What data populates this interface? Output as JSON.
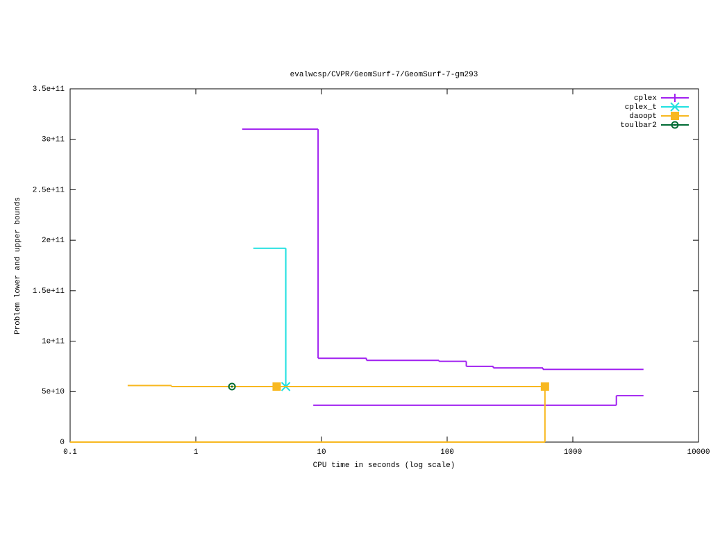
{
  "chart_data": {
    "type": "step",
    "title": "evalwcsp/CVPR/GeomSurf-7/GeomSurf-7-gm293",
    "x_label": "CPU time in seconds (log scale)",
    "y_label": "Problem lower and upper bounds",
    "xscale": "log",
    "legend": "top-right",
    "xlim": [
      0.1,
      10000
    ],
    "xticks": [
      0.1,
      1,
      10,
      100,
      1000,
      10000
    ],
    "ylim": [
      0,
      350000000000
    ],
    "yticks": [
      0,
      {
        "value": 50000000000,
        "label": "5e+10"
      },
      {
        "value": 100000000000,
        "label": "1e+11"
      },
      {
        "value": 150000000000,
        "label": "1.5e+11"
      },
      {
        "value": 200000000000,
        "label": "2e+11"
      },
      {
        "value": 250000000000,
        "label": "2.5e+11"
      },
      {
        "value": 300000000000,
        "label": "3e+11"
      },
      {
        "value": 350000000000,
        "label": "3.5e+11"
      }
    ],
    "series": [
      {
        "name": "cplex",
        "color": "#a020f0",
        "marker": "plus",
        "x": [
          2.34,
          9.4,
          22.8,
          86,
          142,
          233,
          578,
          3650
        ],
        "values": [
          310000000000,
          83000000000,
          81000000000,
          80000000000,
          75000000000,
          73500000000,
          72000000000,
          72000000000
        ],
        "lower_x": [
          8.6,
          2220,
          3650
        ],
        "lower_values": [
          36500000000,
          46000000000,
          46000000000
        ],
        "points": []
      },
      {
        "name": "cplex_t",
        "color": "#20e0e0",
        "marker": "star",
        "x": [
          2.87,
          5.2
        ],
        "values": [
          192000000000,
          55000000000
        ],
        "lower_x": [],
        "lower_values": [],
        "points": [
          {
            "x": 5.2,
            "y": 55000000000
          }
        ]
      },
      {
        "name": "daoopt",
        "color": "#f8b820",
        "marker": "square",
        "x": [
          0.287,
          0.64,
          600
        ],
        "values": [
          56000000000,
          55000000000,
          55000000000
        ],
        "lower_x": [
          0.1,
          600,
          600
        ],
        "lower_values": [
          0,
          0,
          55000000000
        ],
        "points": [
          {
            "x": 4.4,
            "y": 55000000000
          },
          {
            "x": 600,
            "y": 55000000000
          }
        ]
      },
      {
        "name": "toulbar2",
        "color": "#006b34",
        "marker": "circle",
        "x": [],
        "values": [],
        "lower_x": [],
        "lower_values": [],
        "points": [
          {
            "x": 1.94,
            "y": 55000000000
          }
        ]
      }
    ]
  }
}
